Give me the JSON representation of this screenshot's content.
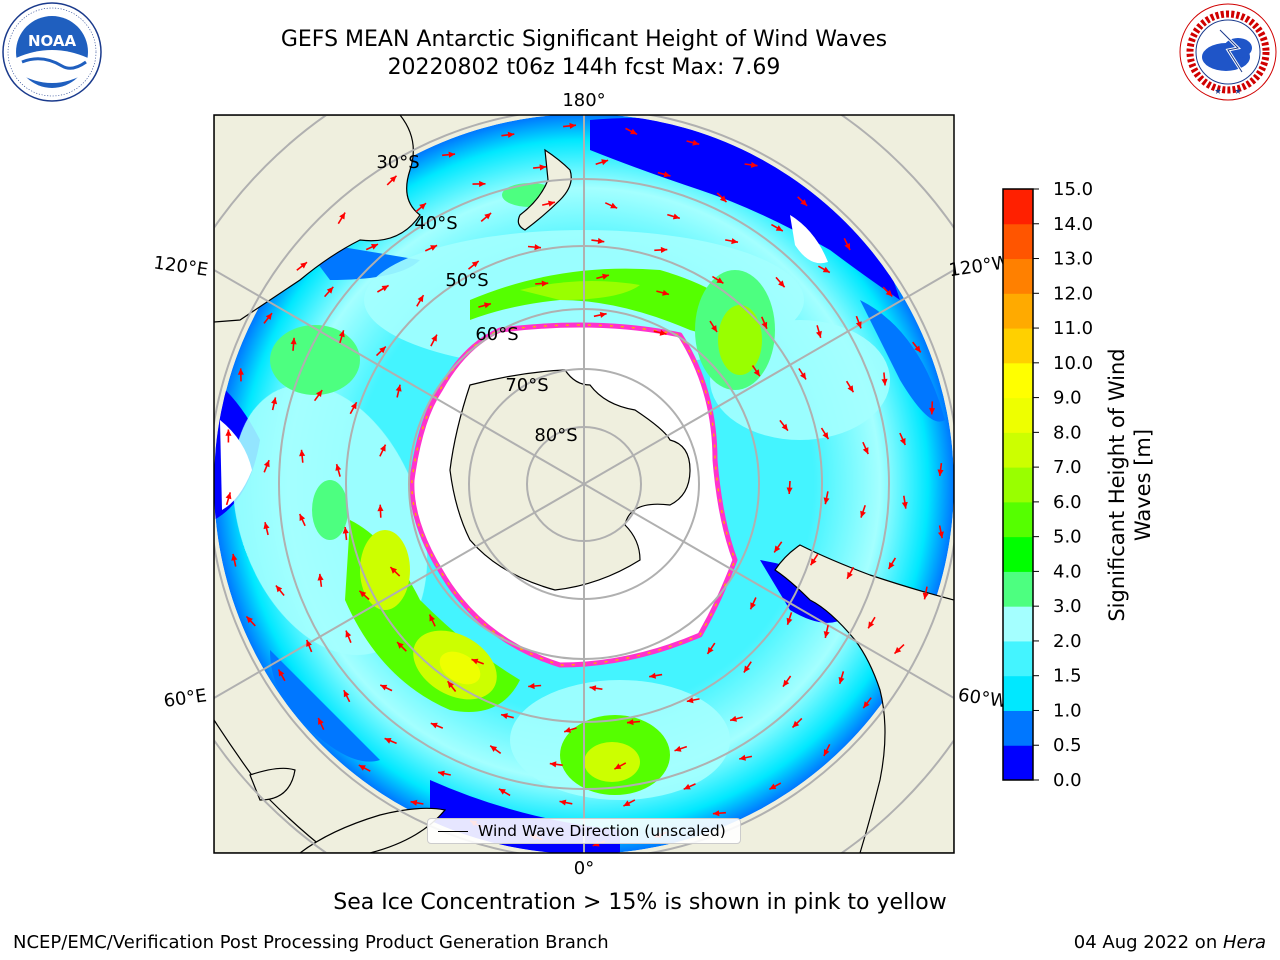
{
  "title": {
    "line1": "GEFS MEAN Antarctic Significant Height of Wind Waves",
    "line2": "20220802 t06z 144h fcst   Max: 7.69"
  },
  "logos": {
    "left": {
      "name": "noaa-logo",
      "text": "NOAA",
      "ring_text": "NATIONAL OCEANIC AND ATMOSPHERIC ADMINISTRATION · U.S. DEPARTMENT OF COMMERCE"
    },
    "right": {
      "name": "nws-logo",
      "ring_text": "NATIONAL WEATHER SERVICE"
    }
  },
  "map": {
    "projection": "south-polar-stereographic",
    "longitude_labels": [
      "180°",
      "120°E",
      "120°W",
      "60°E",
      "60°W",
      "0°"
    ],
    "latitude_labels": [
      "30°S",
      "40°S",
      "50°S",
      "60°S",
      "70°S",
      "80°S"
    ],
    "legend": {
      "label": "Wind Wave Direction (unscaled)"
    },
    "colors": {
      "land": "#efefde",
      "sea_ice": "#ffffff",
      "sea_ice_edge": "#ff33cc",
      "arrow": "#ff0000",
      "grid": "#b0b0b0"
    }
  },
  "colorbar": {
    "label": "Significant Height of Wind Waves [m]",
    "label_lines": [
      "Significant Height of Wind",
      "Waves [m]"
    ],
    "ticks": [
      "0.0",
      "0.5",
      "1.0",
      "1.5",
      "2.0",
      "3.0",
      "4.0",
      "5.0",
      "6.0",
      "7.0",
      "8.0",
      "9.0",
      "10.0",
      "11.0",
      "12.0",
      "13.0",
      "14.0",
      "15.0"
    ],
    "colors": [
      "#0000ff",
      "#0077ff",
      "#00e8ff",
      "#44f4ff",
      "#a4ffff",
      "#4dff80",
      "#00ff00",
      "#55ff00",
      "#99ff00",
      "#ccff00",
      "#eeff00",
      "#ffff00",
      "#ffd000",
      "#ffaa00",
      "#ff8000",
      "#ff5500",
      "#ff2000"
    ]
  },
  "note": "Sea Ice Concentration > 15% is shown in pink to yellow",
  "footer": {
    "left": "NCEP/EMC/Verification Post Processing Product Generation Branch",
    "right_prefix": "04 Aug 2022 on ",
    "right_host": "Hera"
  }
}
